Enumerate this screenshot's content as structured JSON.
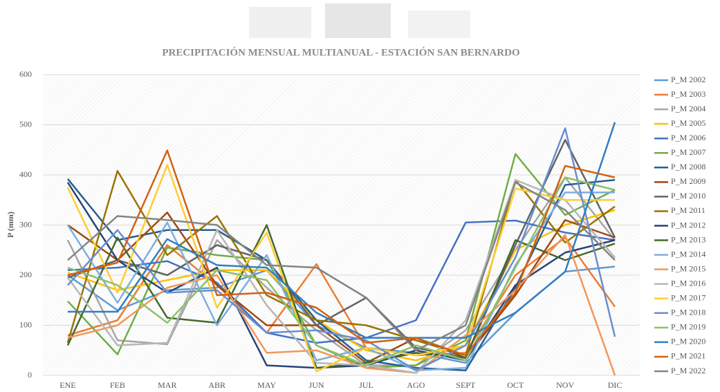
{
  "chart_data": {
    "type": "line",
    "title": "PRECIPITACIÓN MENSUAL MULTIANUAL - ESTACIÓN SAN BERNARDO",
    "y_label": "P (mm)",
    "categories": [
      "ENE",
      "FEB",
      "MAR",
      "ABR",
      "MAY",
      "JUN",
      "JUL",
      "AGO",
      "SEPT",
      "OCT",
      "NOV",
      "DIC"
    ],
    "ylim": [
      0,
      600
    ],
    "yticks": [
      0,
      100,
      200,
      300,
      400,
      500,
      600
    ],
    "grid": true,
    "legend": "right",
    "series": [
      {
        "name": "P_M 2002",
        "color": "#5b9bd5",
        "values": [
          200,
          130,
          170,
          175,
          210,
          100,
          55,
          45,
          25,
          125,
          207,
          217
        ]
      },
      {
        "name": "P_M 2003",
        "color": "#ed7d31",
        "values": [
          80,
          110,
          260,
          180,
          85,
          222,
          55,
          40,
          45,
          200,
          275,
          137
        ]
      },
      {
        "name": "P_M 2004",
        "color": "#a5a5a5",
        "values": [
          270,
          70,
          62,
          270,
          175,
          90,
          20,
          20,
          90,
          250,
          395,
          270
        ]
      },
      {
        "name": "P_M 2005",
        "color": "#ffc000",
        "values": [
          205,
          170,
          190,
          210,
          210,
          110,
          50,
          30,
          60,
          250,
          300,
          330
        ]
      },
      {
        "name": "P_M 2006",
        "color": "#4472c4",
        "values": [
          210,
          215,
          228,
          185,
          85,
          65,
          75,
          110,
          305,
          309,
          285,
          270
        ]
      },
      {
        "name": "P_M 2007",
        "color": "#70ad47",
        "values": [
          148,
          42,
          255,
          240,
          230,
          60,
          15,
          20,
          70,
          442,
          320,
          370
        ]
      },
      {
        "name": "P_M 2008",
        "color": "#255e91",
        "values": [
          392,
          270,
          290,
          290,
          230,
          110,
          30,
          15,
          10,
          175,
          380,
          390
        ]
      },
      {
        "name": "P_M 2009",
        "color": "#9e480e",
        "values": [
          300,
          230,
          325,
          180,
          100,
          100,
          25,
          75,
          35,
          160,
          310,
          275
        ]
      },
      {
        "name": "P_M 2010",
        "color": "#636363",
        "values": [
          195,
          230,
          200,
          260,
          230,
          100,
          155,
          55,
          35,
          260,
          470,
          275
        ]
      },
      {
        "name": "P_M 2011",
        "color": "#997300",
        "values": [
          65,
          408,
          240,
          318,
          160,
          110,
          100,
          70,
          40,
          390,
          265,
          337
        ]
      },
      {
        "name": "P_M 2012",
        "color": "#264478",
        "values": [
          385,
          230,
          165,
          215,
          20,
          15,
          20,
          50,
          30,
          180,
          245,
          270
        ]
      },
      {
        "name": "P_M 2013",
        "color": "#43682b",
        "values": [
          60,
          275,
          115,
          105,
          300,
          15,
          25,
          45,
          35,
          270,
          230,
          263
        ]
      },
      {
        "name": "P_M 2014",
        "color": "#7cafdd",
        "values": [
          300,
          145,
          305,
          100,
          240,
          30,
          55,
          10,
          15,
          220,
          365,
          365
        ]
      },
      {
        "name": "P_M 2015",
        "color": "#f1975a",
        "values": [
          75,
          100,
          175,
          200,
          45,
          50,
          15,
          5,
          80,
          170,
          280,
          0
        ]
      },
      {
        "name": "P_M 2016",
        "color": "#b7b7b7",
        "values": [
          195,
          60,
          65,
          290,
          140,
          25,
          20,
          5,
          110,
          390,
          350,
          235
        ]
      },
      {
        "name": "P_M 2017",
        "color": "#ffcd33",
        "values": [
          375,
          165,
          420,
          135,
          285,
          8,
          55,
          40,
          60,
          373,
          350,
          350
        ]
      },
      {
        "name": "P_M 2018",
        "color": "#698ed0",
        "values": [
          180,
          290,
          165,
          170,
          85,
          90,
          70,
          10,
          60,
          235,
          493,
          77
        ]
      },
      {
        "name": "P_M 2019",
        "color": "#8cc168",
        "values": [
          215,
          180,
          105,
          210,
          190,
          60,
          20,
          60,
          30,
          215,
          395,
          370
        ]
      },
      {
        "name": "P_M 2020",
        "color": "#327dc2",
        "values": [
          127,
          127,
          272,
          220,
          215,
          125,
          75,
          75,
          75,
          125,
          207,
          505
        ]
      },
      {
        "name": "P_M 2021",
        "color": "#d26012",
        "values": [
          200,
          225,
          449,
          160,
          165,
          135,
          65,
          75,
          40,
          165,
          418,
          395
        ]
      },
      {
        "name": "P_M 2022",
        "color": "#848484",
        "values": [
          230,
          318,
          310,
          300,
          220,
          215,
          155,
          50,
          100,
          385,
          330,
          230
        ]
      }
    ]
  }
}
